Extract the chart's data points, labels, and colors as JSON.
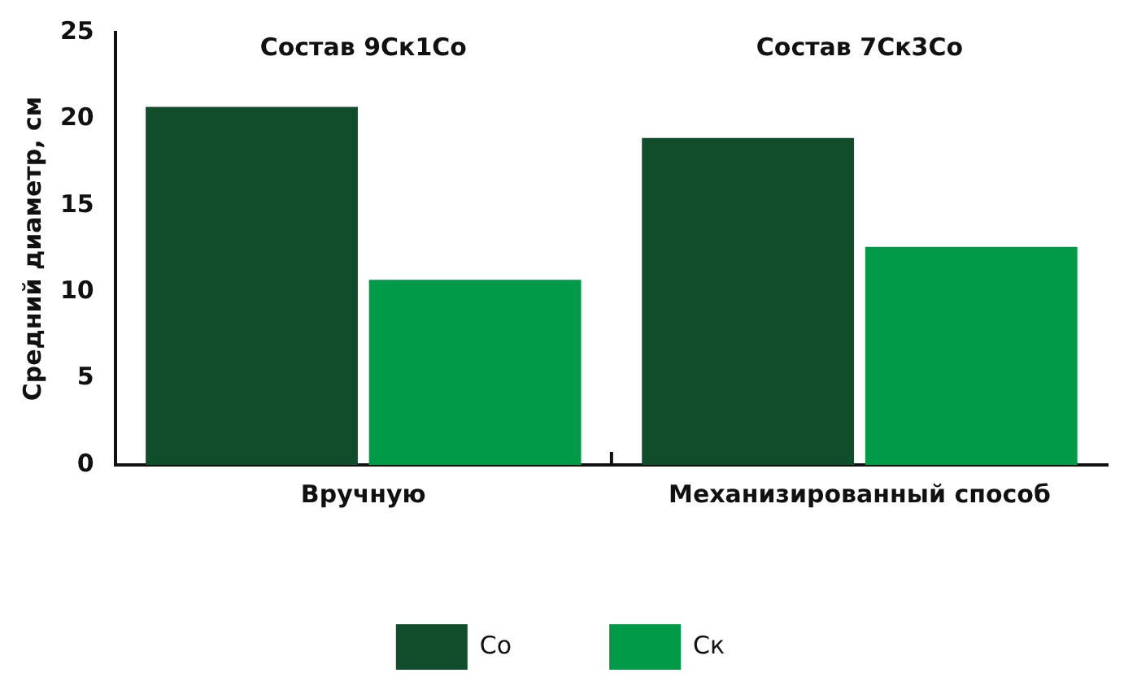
{
  "chart_data": {
    "type": "bar",
    "ylabel": "Средний диаметр, см",
    "categories": [
      "Вручную",
      "Механизированный способ"
    ],
    "series": [
      {
        "name": "Со",
        "color": "#0f4d2b",
        "values": [
          20.7,
          18.9
        ]
      },
      {
        "name": "Ск",
        "color": "#009a48",
        "values": [
          10.7,
          12.6
        ]
      }
    ],
    "ylim": [
      0,
      25
    ],
    "yticks": [
      0,
      5,
      10,
      15,
      20,
      25
    ],
    "grid": false,
    "legend": "bottom",
    "annotations": [
      "Состав 9Ск1Со",
      "Состав 7Ск3Со"
    ]
  }
}
